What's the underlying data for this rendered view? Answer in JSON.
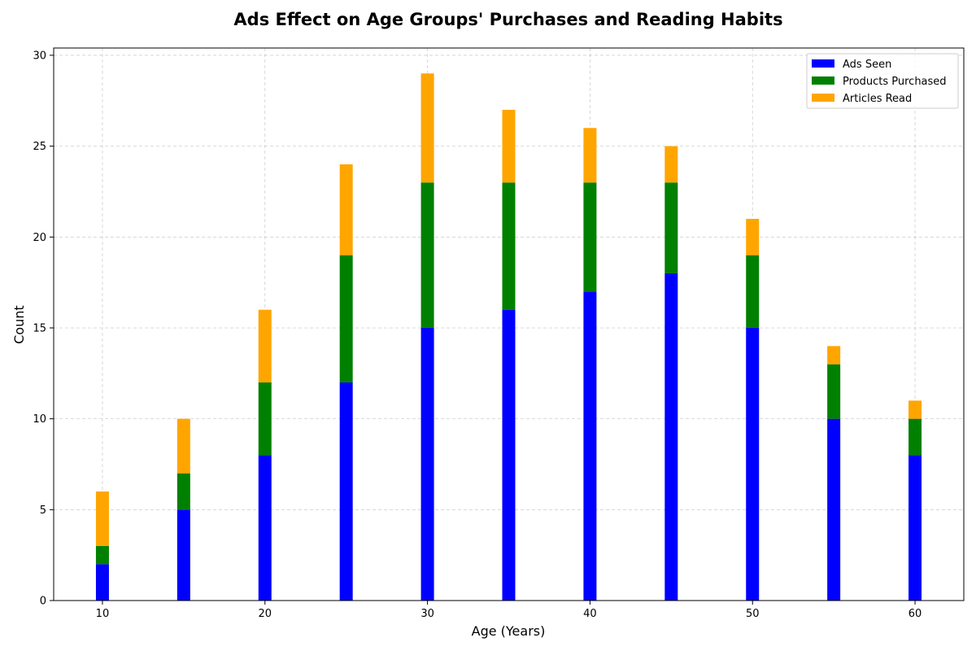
{
  "chart_data": {
    "type": "bar",
    "stacked": true,
    "title": "Ads Effect on Age Groups' Purchases and Reading Habits",
    "xlabel": "Age (Years)",
    "ylabel": "Count",
    "x": [
      10,
      15,
      20,
      25,
      30,
      35,
      40,
      45,
      50,
      55,
      60
    ],
    "xlim": [
      7,
      63
    ],
    "ylim": [
      0,
      30.4
    ],
    "xticks": [
      10,
      20,
      30,
      40,
      50,
      60
    ],
    "yticks": [
      0,
      5,
      10,
      15,
      20,
      25,
      30
    ],
    "grid": true,
    "legend_position": "top-right",
    "series": [
      {
        "name": "Ads Seen",
        "color": "#0000ff",
        "values": [
          2,
          5,
          8,
          12,
          15,
          16,
          17,
          18,
          15,
          10,
          8
        ]
      },
      {
        "name": "Products Purchased",
        "color": "#008000",
        "values": [
          1,
          2,
          4,
          7,
          8,
          7,
          6,
          5,
          4,
          3,
          2
        ]
      },
      {
        "name": "Articles Read",
        "color": "#ffa500",
        "values": [
          3,
          3,
          4,
          5,
          6,
          4,
          3,
          2,
          2,
          1,
          1
        ]
      }
    ]
  }
}
